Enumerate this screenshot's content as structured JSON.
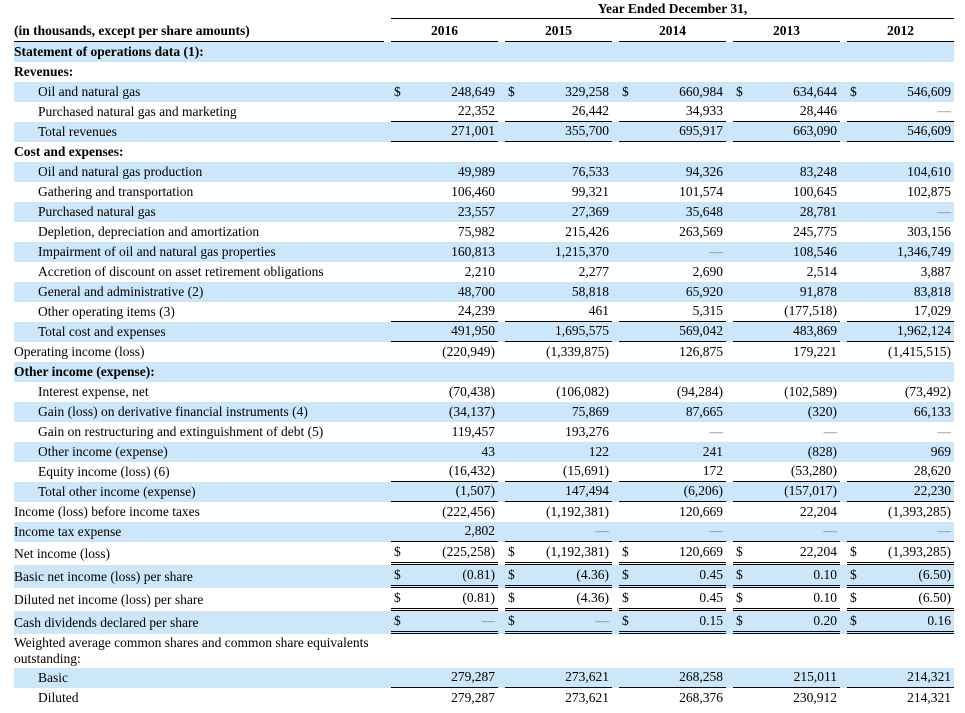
{
  "header": {
    "title": "Year Ended December 31,",
    "units_note": "(in thousands, except per share amounts)",
    "years": [
      "2016",
      "2015",
      "2014",
      "2013",
      "2012"
    ]
  },
  "table": {
    "rows": [
      {
        "label": "Statement of operations data (1):",
        "bold": true,
        "indent": false,
        "shaded": true,
        "dollar": false,
        "underline": "none",
        "values": null
      },
      {
        "label": "Revenues:",
        "bold": true,
        "indent": false,
        "shaded": false,
        "dollar": false,
        "underline": "none",
        "values": null
      },
      {
        "label": "Oil and natural gas",
        "bold": false,
        "indent": true,
        "shaded": true,
        "dollar": true,
        "underline": "none",
        "values": [
          "248,649",
          "329,258",
          "660,984",
          "634,644",
          "546,609"
        ]
      },
      {
        "label": "Purchased natural gas and marketing",
        "bold": false,
        "indent": true,
        "shaded": false,
        "dollar": false,
        "underline": "single",
        "values": [
          "22,352",
          "26,442",
          "34,933",
          "28,446",
          "—"
        ]
      },
      {
        "label": "Total revenues",
        "bold": false,
        "indent": true,
        "shaded": true,
        "dollar": false,
        "underline": "single",
        "values": [
          "271,001",
          "355,700",
          "695,917",
          "663,090",
          "546,609"
        ]
      },
      {
        "label": "Cost and expenses:",
        "bold": true,
        "indent": false,
        "shaded": false,
        "dollar": false,
        "underline": "none",
        "values": null
      },
      {
        "label": "Oil and natural gas production",
        "bold": false,
        "indent": true,
        "shaded": true,
        "dollar": false,
        "underline": "none",
        "values": [
          "49,989",
          "76,533",
          "94,326",
          "83,248",
          "104,610"
        ]
      },
      {
        "label": "Gathering and transportation",
        "bold": false,
        "indent": true,
        "shaded": false,
        "dollar": false,
        "underline": "none",
        "values": [
          "106,460",
          "99,321",
          "101,574",
          "100,645",
          "102,875"
        ]
      },
      {
        "label": "Purchased natural gas",
        "bold": false,
        "indent": true,
        "shaded": true,
        "dollar": false,
        "underline": "none",
        "values": [
          "23,557",
          "27,369",
          "35,648",
          "28,781",
          "—"
        ]
      },
      {
        "label": "Depletion, depreciation and amortization",
        "bold": false,
        "indent": true,
        "shaded": false,
        "dollar": false,
        "underline": "none",
        "values": [
          "75,982",
          "215,426",
          "263,569",
          "245,775",
          "303,156"
        ]
      },
      {
        "label": "Impairment of oil and natural gas properties",
        "bold": false,
        "indent": true,
        "shaded": true,
        "dollar": false,
        "underline": "none",
        "values": [
          "160,813",
          "1,215,370",
          "—",
          "108,546",
          "1,346,749"
        ]
      },
      {
        "label": "Accretion of discount on asset retirement obligations",
        "bold": false,
        "indent": true,
        "shaded": false,
        "dollar": false,
        "underline": "none",
        "values": [
          "2,210",
          "2,277",
          "2,690",
          "2,514",
          "3,887"
        ]
      },
      {
        "label": "General and administrative (2)",
        "bold": false,
        "indent": true,
        "shaded": true,
        "dollar": false,
        "underline": "none",
        "values": [
          "48,700",
          "58,818",
          "65,920",
          "91,878",
          "83,818"
        ]
      },
      {
        "label": "Other operating items (3)",
        "bold": false,
        "indent": true,
        "shaded": false,
        "dollar": false,
        "underline": "single",
        "values": [
          "24,239",
          "461",
          "5,315",
          "(177,518)",
          "17,029"
        ]
      },
      {
        "label": "Total cost and expenses",
        "bold": false,
        "indent": true,
        "shaded": true,
        "dollar": false,
        "underline": "single",
        "values": [
          "491,950",
          "1,695,575",
          "569,042",
          "483,869",
          "1,962,124"
        ]
      },
      {
        "label": "Operating income (loss)",
        "bold": false,
        "indent": false,
        "shaded": false,
        "dollar": false,
        "underline": "none",
        "values": [
          "(220,949)",
          "(1,339,875)",
          "126,875",
          "179,221",
          "(1,415,515)"
        ]
      },
      {
        "label": "Other income (expense):",
        "bold": true,
        "indent": false,
        "shaded": true,
        "dollar": false,
        "underline": "none",
        "values": null
      },
      {
        "label": "Interest expense, net",
        "bold": false,
        "indent": true,
        "shaded": false,
        "dollar": false,
        "underline": "none",
        "values": [
          "(70,438)",
          "(106,082)",
          "(94,284)",
          "(102,589)",
          "(73,492)"
        ]
      },
      {
        "label": "Gain (loss) on derivative financial instruments (4)",
        "bold": false,
        "indent": true,
        "shaded": true,
        "dollar": false,
        "underline": "none",
        "values": [
          "(34,137)",
          "75,869",
          "87,665",
          "(320)",
          "66,133"
        ]
      },
      {
        "label": "Gain on restructuring and extinguishment of debt (5)",
        "bold": false,
        "indent": true,
        "shaded": false,
        "dollar": false,
        "underline": "none",
        "values": [
          "119,457",
          "193,276",
          "—",
          "—",
          "—"
        ]
      },
      {
        "label": "Other income (expense)",
        "bold": false,
        "indent": true,
        "shaded": true,
        "dollar": false,
        "underline": "none",
        "values": [
          "43",
          "122",
          "241",
          "(828)",
          "969"
        ]
      },
      {
        "label": "Equity income (loss) (6)",
        "bold": false,
        "indent": true,
        "shaded": false,
        "dollar": false,
        "underline": "single",
        "values": [
          "(16,432)",
          "(15,691)",
          "172",
          "(53,280)",
          "28,620"
        ]
      },
      {
        "label": "Total other income (expense)",
        "bold": false,
        "indent": true,
        "shaded": true,
        "dollar": false,
        "underline": "single",
        "values": [
          "(1,507)",
          "147,494",
          "(6,206)",
          "(157,017)",
          "22,230"
        ]
      },
      {
        "label": "Income (loss) before income taxes",
        "bold": false,
        "indent": false,
        "shaded": false,
        "dollar": false,
        "underline": "none",
        "values": [
          "(222,456)",
          "(1,192,381)",
          "120,669",
          "22,204",
          "(1,393,285)"
        ]
      },
      {
        "label": "Income tax expense",
        "bold": false,
        "indent": false,
        "shaded": true,
        "dollar": false,
        "underline": "single",
        "values": [
          "2,802",
          "—",
          "—",
          "—",
          "—"
        ]
      },
      {
        "label": "Net income (loss)",
        "bold": false,
        "indent": false,
        "shaded": false,
        "dollar": true,
        "underline": "double",
        "values": [
          "(225,258)",
          "(1,192,381)",
          "120,669",
          "22,204",
          "(1,393,285)"
        ]
      },
      {
        "label": "Basic net income (loss) per share",
        "bold": false,
        "indent": false,
        "shaded": true,
        "dollar": true,
        "underline": "double",
        "values": [
          "(0.81)",
          "(4.36)",
          "0.45",
          "0.10",
          "(6.50)"
        ]
      },
      {
        "label": "Diluted net income (loss) per share",
        "bold": false,
        "indent": false,
        "shaded": false,
        "dollar": true,
        "underline": "double",
        "values": [
          "(0.81)",
          "(4.36)",
          "0.45",
          "0.10",
          "(6.50)"
        ]
      },
      {
        "label": "Cash dividends declared per share",
        "bold": false,
        "indent": false,
        "shaded": true,
        "dollar": true,
        "underline": "double",
        "values": [
          "—",
          "—",
          "0.15",
          "0.20",
          "0.16"
        ]
      },
      {
        "label": "Weighted average common shares and common share equivalents outstanding:",
        "bold": false,
        "indent": false,
        "shaded": false,
        "dollar": false,
        "underline": "none",
        "values": null,
        "wrap2": true
      },
      {
        "label": "Basic",
        "bold": false,
        "indent": true,
        "shaded": true,
        "dollar": false,
        "underline": "single",
        "values": [
          "279,287",
          "273,621",
          "268,258",
          "215,011",
          "214,321"
        ]
      },
      {
        "label": "Diluted",
        "bold": false,
        "indent": true,
        "shaded": false,
        "dollar": false,
        "underline": "none",
        "values": [
          "279,287",
          "273,621",
          "268,376",
          "230,912",
          "214,321"
        ]
      }
    ]
  }
}
